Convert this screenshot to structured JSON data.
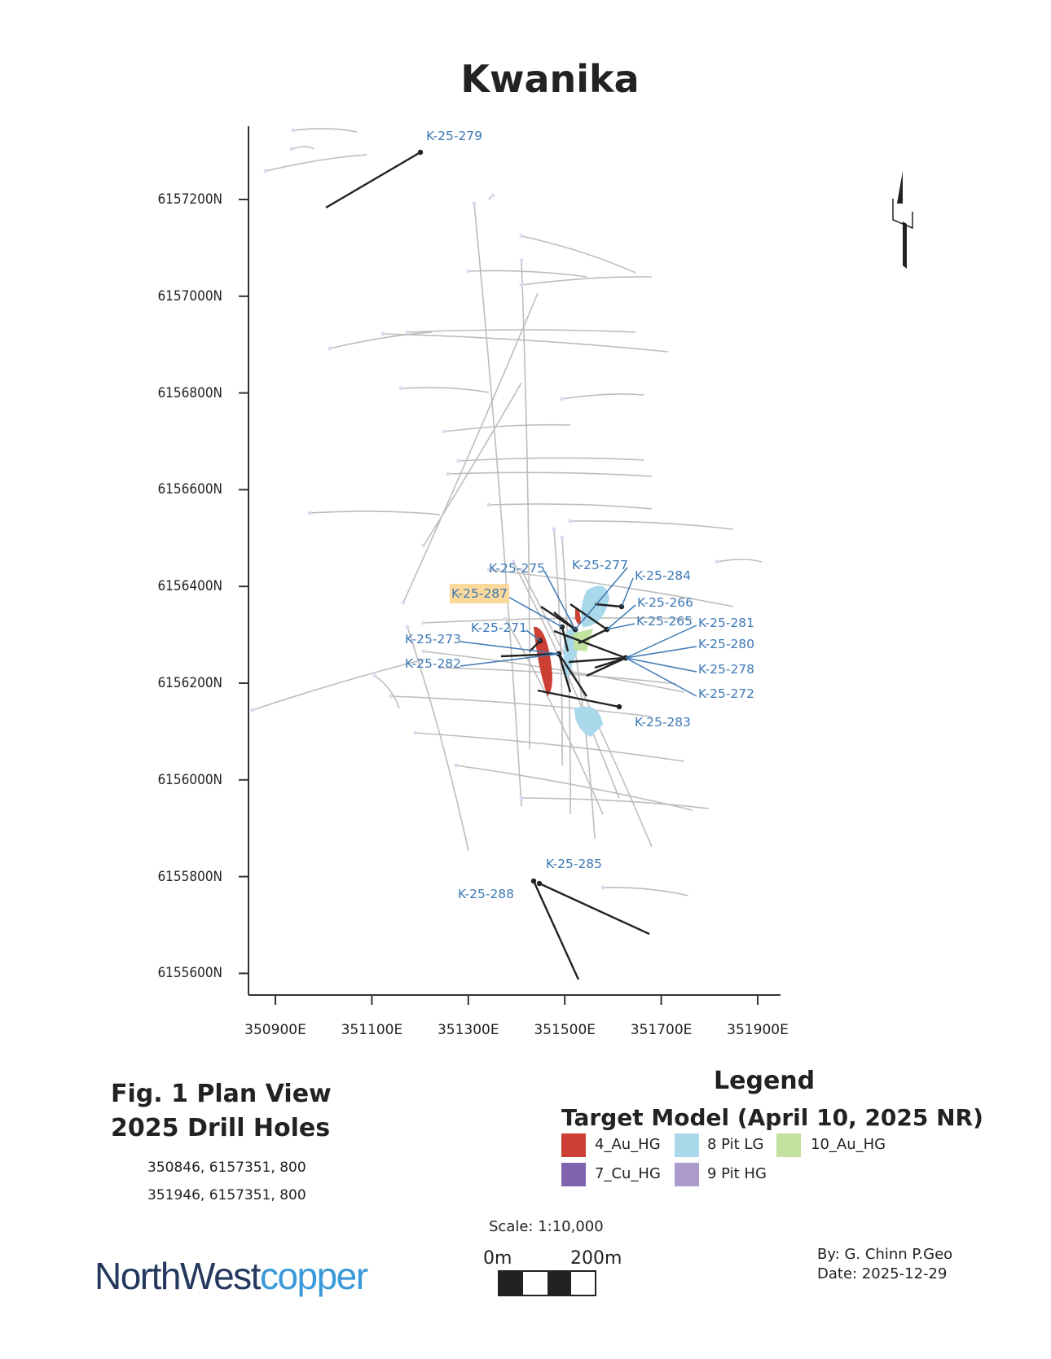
{
  "title": "Kwanika",
  "map": {
    "y_ticks": [
      "6157200N",
      "6157000N",
      "6156800N",
      "6156600N",
      "6156400N",
      "6156200N",
      "6156000N",
      "6155800N",
      "6155600N"
    ],
    "x_ticks": [
      "350900E",
      "351100E",
      "351300E",
      "351500E",
      "351700E",
      "351900E"
    ],
    "drill_holes": [
      {
        "id": "K-25-279"
      },
      {
        "id": "K-25-275"
      },
      {
        "id": "K-25-277"
      },
      {
        "id": "K-25-284"
      },
      {
        "id": "K-25-287",
        "highlighted": true
      },
      {
        "id": "K-25-266"
      },
      {
        "id": "K-25-265"
      },
      {
        "id": "K-25-281"
      },
      {
        "id": "K-25-271"
      },
      {
        "id": "K-25-273"
      },
      {
        "id": "K-25-280"
      },
      {
        "id": "K-25-282"
      },
      {
        "id": "K-25-278"
      },
      {
        "id": "K-25-272"
      },
      {
        "id": "K-25-283"
      },
      {
        "id": "K-25-285"
      },
      {
        "id": "K-25-288"
      }
    ],
    "colors": {
      "label": "#3d78b5",
      "new_hole": "#222222",
      "old_hole": "#bdbdbd",
      "highlight": "#fbd99a"
    },
    "north_arrow_icon": "north-arrow-icon"
  },
  "figure": {
    "line1": "Fig. 1 Plan View",
    "line2": "2025 Drill Holes",
    "coord1": "350846, 6157351, 800",
    "coord2": "351946, 6157351, 800"
  },
  "legend": {
    "title": "Legend",
    "subtitle": "Target Model (April 10, 2025 NR)",
    "items": [
      {
        "label": "4_Au_HG",
        "color": "#cc3f35"
      },
      {
        "label": "8 Pit LG",
        "color": "#a8d8ea"
      },
      {
        "label": "10_Au_HG",
        "color": "#c3e19f"
      },
      {
        "label": "7_Cu_HG",
        "color": "#7f64ad"
      },
      {
        "label": "9 Pit HG",
        "color": "#ab9ccd"
      }
    ]
  },
  "scale": {
    "text": "Scale: 1:10,000",
    "left_label": "0m",
    "right_label": "200m"
  },
  "logo": {
    "part1": "NorthWest",
    "part2": "copper",
    "color1": "#25395f",
    "color2": "#3a9ad9"
  },
  "credits": {
    "by": "By: G. Chinn P.Geo",
    "date": "Date: 2025-12-29"
  }
}
